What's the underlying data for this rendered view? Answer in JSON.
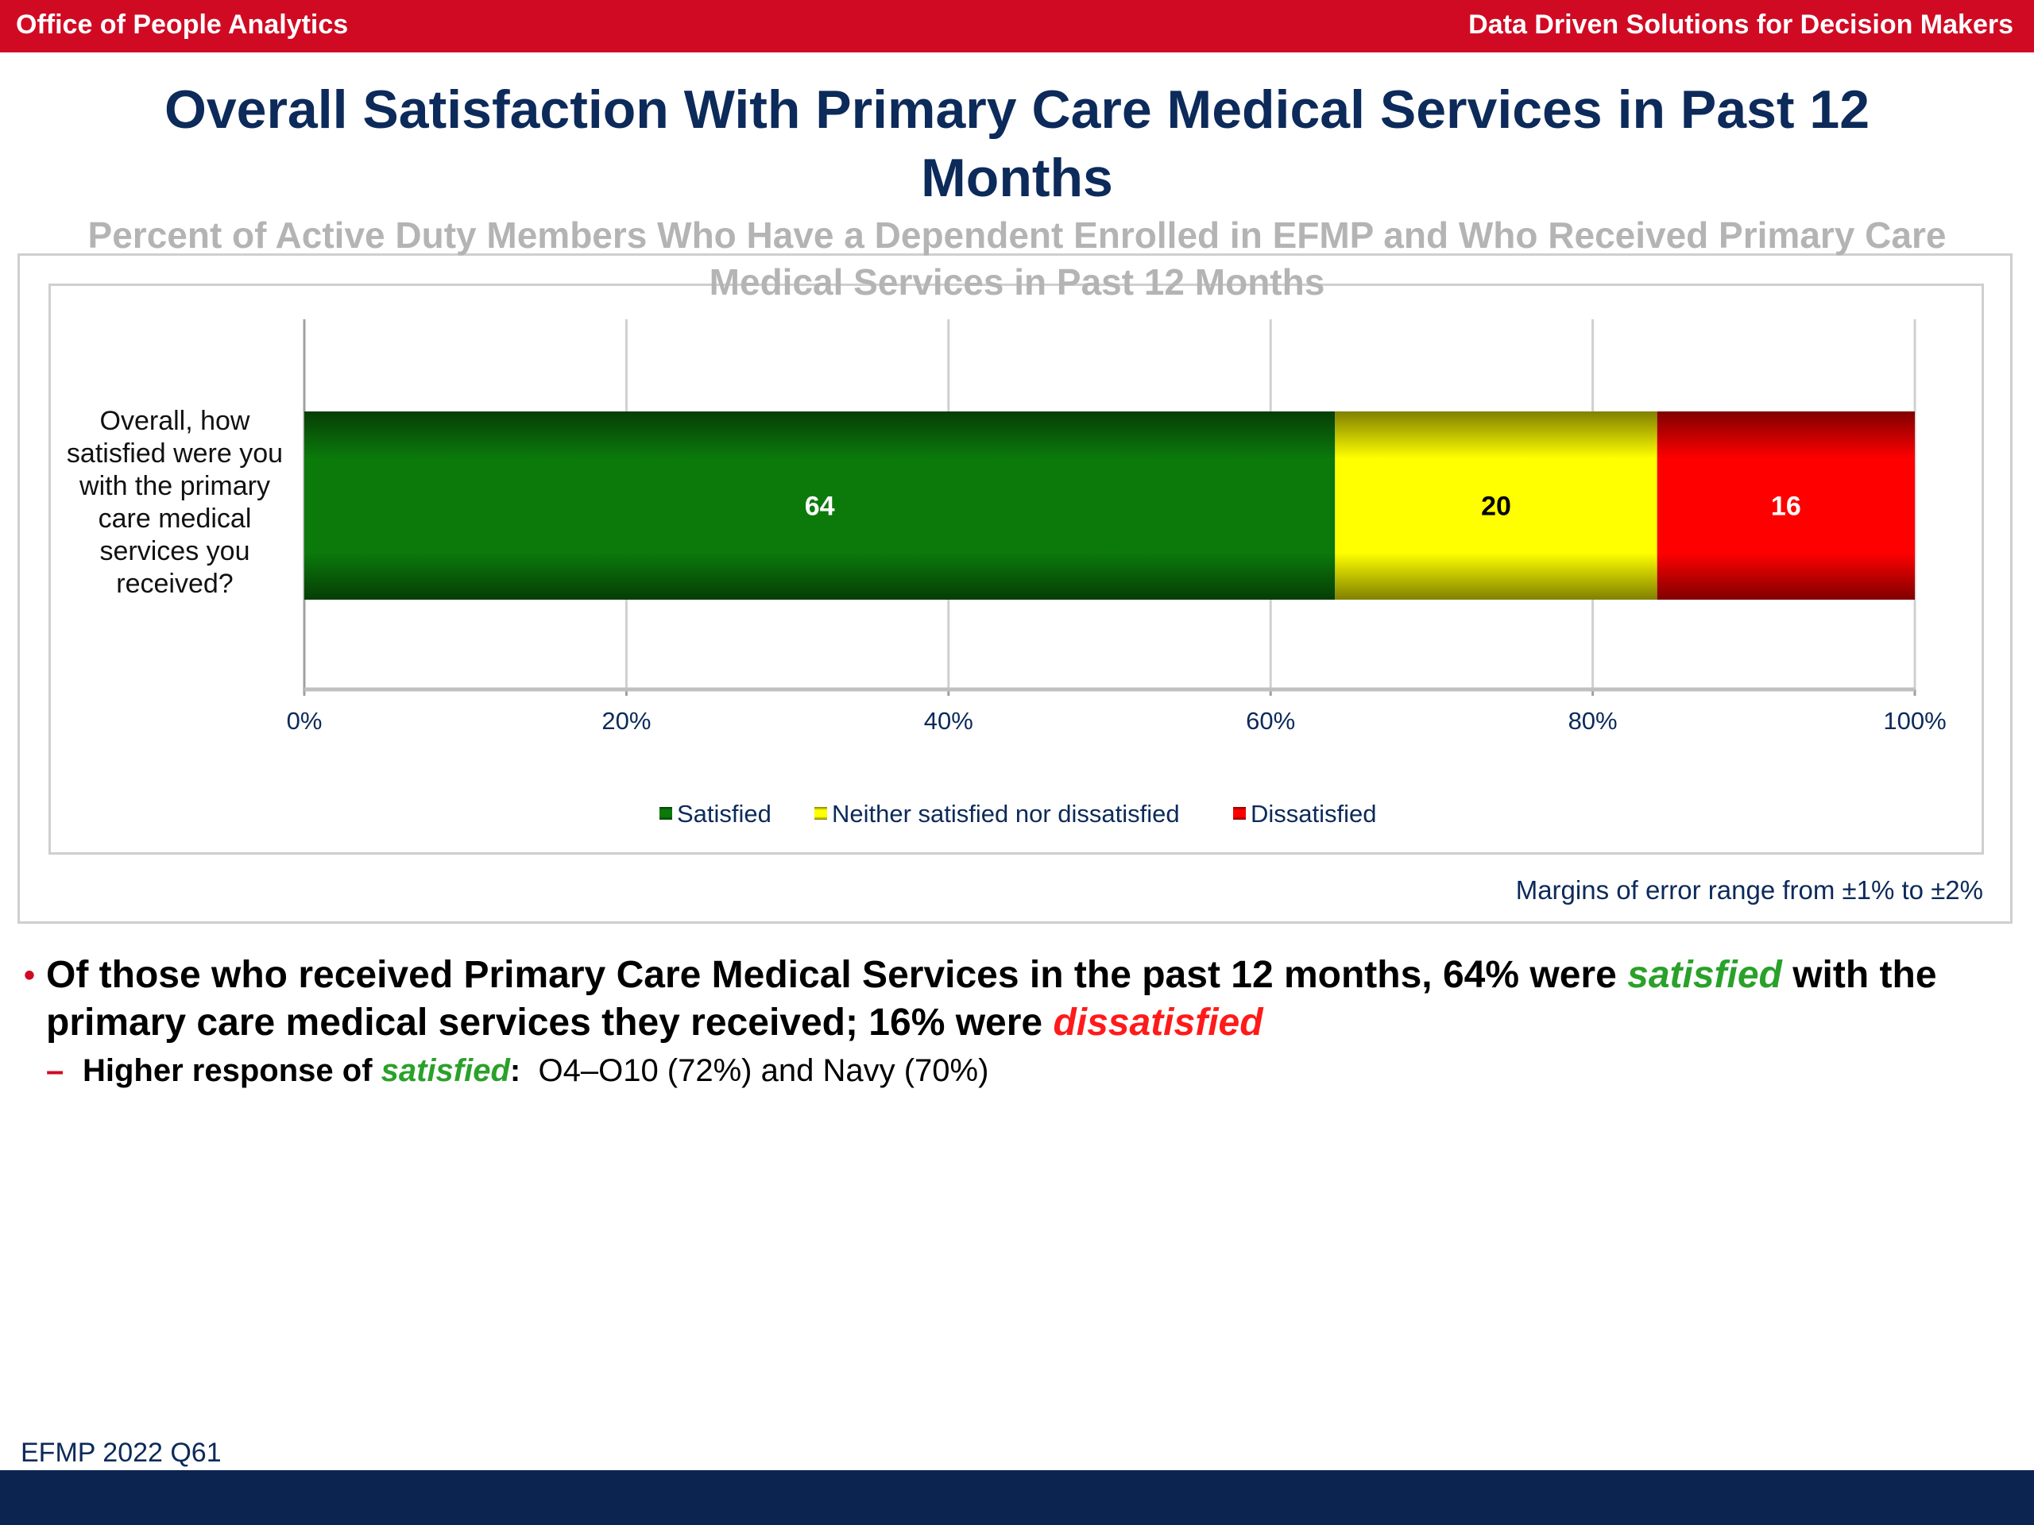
{
  "header": {
    "left": "Office of People Analytics",
    "right": "Data Driven Solutions for Decision Makers"
  },
  "title": "Overall Satisfaction With Primary Care Medical Services in Past 12 Months",
  "subtitle": "Percent of Active Duty Members Who Have a Dependent Enrolled in EFMP and Who Received Primary Care Medical Services in Past 12 Months",
  "chart_data": {
    "type": "bar",
    "orientation": "horizontal",
    "stacked": true,
    "categories": [
      "Overall, how satisfied were you with the primary care medical services you received?"
    ],
    "series": [
      {
        "name": "Satisfied",
        "values": [
          64
        ],
        "color": "#0b7a0b"
      },
      {
        "name": "Neither satisfied nor dissatisfied",
        "values": [
          20
        ],
        "color": "#ffff00"
      },
      {
        "name": "Dissatisfied",
        "values": [
          16
        ],
        "color": "#ff0000"
      }
    ],
    "data_labels": [
      "64",
      "20",
      "16"
    ],
    "xlim": [
      0,
      100
    ],
    "x_ticks": [
      "0%",
      "20%",
      "40%",
      "60%",
      "80%",
      "100%"
    ],
    "grid": true,
    "legend": "bottom-center"
  },
  "moe": "Margins of error range from ±1% to ±2%",
  "bullet": {
    "part1": "Of those who received Primary Care Medical Services in the past 12 months, 64% were ",
    "sat": "satisfied",
    "part2": " with the primary care medical services they received; 16% were ",
    "dis": "dissatisfied"
  },
  "sub_bullet": {
    "dash": "–",
    "lead": "Higher response of ",
    "sat": "satisfied",
    "colon": ":",
    "rest": "  O4–O10 (72%) and Navy (70%)"
  },
  "source": "EFMP 2022 Q61"
}
